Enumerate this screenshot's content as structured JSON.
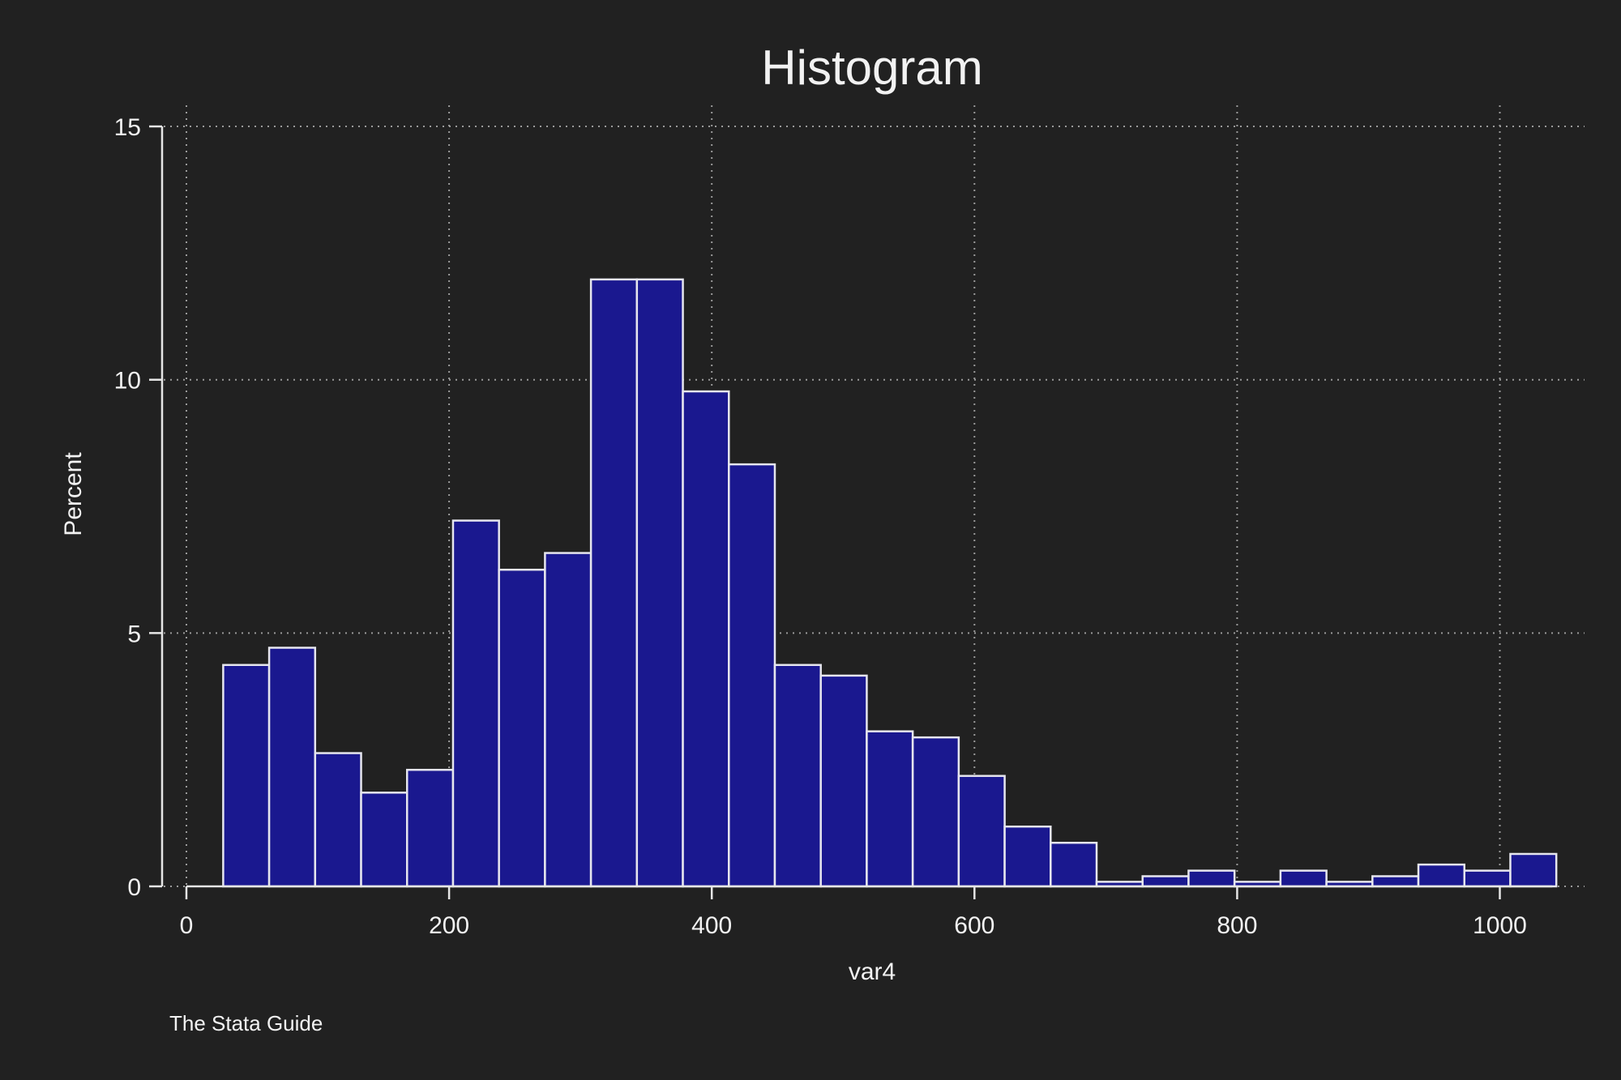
{
  "colors": {
    "background": "#212121",
    "bar_fill": "#1a188f",
    "bar_edge": "#e6e6ee",
    "axis": "#e6e6e6",
    "grid": "#9a9a9a",
    "text": "#f2f2f2"
  },
  "chart_data": {
    "type": "bar",
    "title": "Histogram",
    "xlabel": "var4",
    "ylabel": "Percent",
    "note": "The Stata Guide",
    "xlim": [
      0,
      1040
    ],
    "ylim": [
      0,
      15
    ],
    "xticks": [
      0,
      200,
      400,
      600,
      800,
      1000
    ],
    "xtick_labels": [
      "0",
      "200",
      "400",
      "600",
      "800",
      "1000"
    ],
    "yticks": [
      0,
      5,
      10,
      15
    ],
    "ytick_labels": [
      "0",
      "5",
      "10",
      "15"
    ],
    "grid": true,
    "bin_start": 28,
    "bin_width": 35,
    "values": [
      4.37,
      4.71,
      2.63,
      1.85,
      2.3,
      7.22,
      6.25,
      6.58,
      11.98,
      11.98,
      9.77,
      8.33,
      4.37,
      4.16,
      3.06,
      2.94,
      2.18,
      1.18,
      0.86,
      0.09,
      0.2,
      0.31,
      0.09,
      0.31,
      0.09,
      0.2,
      0.43,
      0.31,
      0.64
    ]
  }
}
